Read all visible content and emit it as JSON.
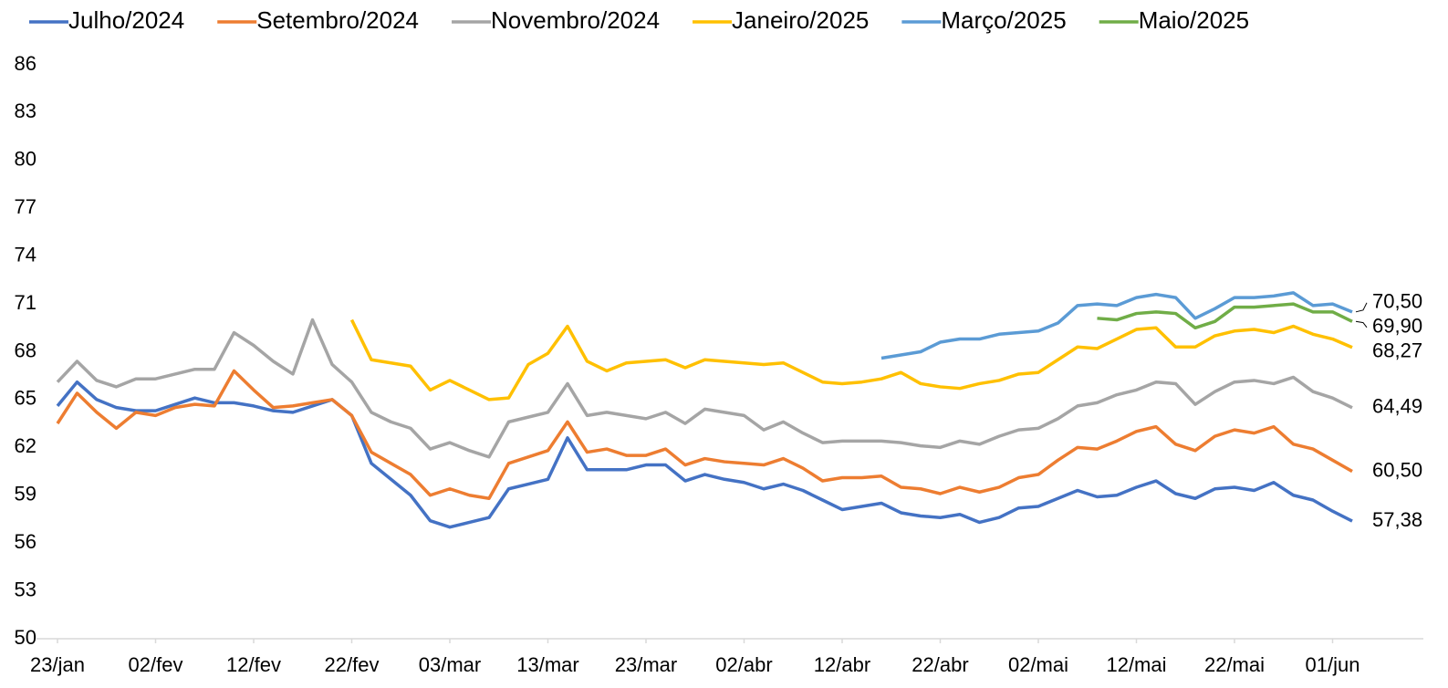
{
  "chart_data": {
    "type": "line",
    "x": [
      0,
      2,
      4,
      6,
      8,
      10,
      12,
      14,
      16,
      18,
      20,
      22,
      24,
      26,
      28,
      30,
      32,
      34,
      36,
      38,
      40,
      42,
      44,
      46,
      48,
      50,
      52,
      54,
      56,
      58,
      60,
      62,
      64,
      66,
      68,
      70,
      72,
      74,
      76,
      78,
      80,
      82,
      84,
      86,
      88,
      90,
      92,
      94,
      96,
      98,
      100,
      102,
      104,
      106,
      108,
      110,
      112,
      114,
      116,
      118,
      120,
      122,
      124,
      126,
      128,
      130,
      132
    ],
    "xlim": [
      0,
      132
    ],
    "xticks": [
      {
        "value": 0,
        "label": "23/jan"
      },
      {
        "value": 10,
        "label": "02/fev"
      },
      {
        "value": 20,
        "label": "12/fev"
      },
      {
        "value": 30,
        "label": "22/fev"
      },
      {
        "value": 40,
        "label": "03/mar"
      },
      {
        "value": 50,
        "label": "13/mar"
      },
      {
        "value": 60,
        "label": "23/mar"
      },
      {
        "value": 70,
        "label": "02/abr"
      },
      {
        "value": 80,
        "label": "12/abr"
      },
      {
        "value": 90,
        "label": "22/abr"
      },
      {
        "value": 100,
        "label": "02/mai"
      },
      {
        "value": 110,
        "label": "12/mai"
      },
      {
        "value": 120,
        "label": "22/mai"
      },
      {
        "value": 130,
        "label": "01/jun"
      }
    ],
    "ylim": [
      50,
      86
    ],
    "yticks": [
      50,
      53,
      56,
      59,
      62,
      65,
      68,
      71,
      74,
      77,
      80,
      83,
      86
    ],
    "legend": "top",
    "series": [
      {
        "name": "Julho/2024",
        "color": "#4472c4",
        "values": [
          64.6,
          66.1,
          65.0,
          64.5,
          64.3,
          64.3,
          64.7,
          65.1,
          64.8,
          64.8,
          64.6,
          64.3,
          64.2,
          64.6,
          65.0,
          64.0,
          61.0,
          60.0,
          59.0,
          57.4,
          57.0,
          57.3,
          57.6,
          59.4,
          59.7,
          60.0,
          62.6,
          60.6,
          60.6,
          60.6,
          60.9,
          60.9,
          59.9,
          60.3,
          60.0,
          59.8,
          59.4,
          59.7,
          59.3,
          58.7,
          58.1,
          58.3,
          58.5,
          57.9,
          57.7,
          57.6,
          57.8,
          57.3,
          57.6,
          58.2,
          58.3,
          58.8,
          59.3,
          58.9,
          59.0,
          59.5,
          59.9,
          59.1,
          58.8,
          59.4,
          59.5,
          59.3,
          59.8,
          59.0,
          58.7,
          58.0,
          57.38
        ],
        "value_labels": [
          null,
          null,
          null,
          null,
          null,
          null,
          null,
          null,
          null,
          null,
          null,
          null,
          null,
          null,
          null,
          null,
          null,
          null,
          null,
          null,
          null,
          null,
          null,
          null,
          null,
          null,
          null,
          null,
          null,
          null,
          null,
          null,
          null,
          null,
          null,
          null,
          null,
          null,
          null,
          null,
          null,
          null,
          null,
          null,
          null,
          null,
          null,
          null,
          null,
          null,
          null,
          null,
          null,
          null,
          null,
          null,
          null,
          null,
          null,
          null,
          null,
          null,
          null,
          null,
          null,
          null,
          "57,38"
        ]
      },
      {
        "name": "Setembro/2024",
        "color": "#ed7d31",
        "values": [
          63.5,
          65.4,
          64.2,
          63.2,
          64.2,
          64.0,
          64.5,
          64.7,
          64.6,
          66.8,
          65.6,
          64.5,
          64.6,
          64.8,
          65.0,
          64.0,
          61.7,
          61.0,
          60.3,
          59.0,
          59.4,
          59.0,
          58.8,
          61.0,
          61.4,
          61.8,
          63.6,
          61.7,
          61.9,
          61.5,
          61.5,
          61.9,
          60.9,
          61.3,
          61.1,
          61.0,
          60.9,
          61.3,
          60.7,
          59.9,
          60.1,
          60.1,
          60.2,
          59.5,
          59.4,
          59.1,
          59.5,
          59.2,
          59.5,
          60.1,
          60.3,
          61.2,
          62.0,
          61.9,
          62.4,
          63.0,
          63.3,
          62.2,
          61.8,
          62.7,
          63.1,
          62.9,
          63.3,
          62.2,
          61.9,
          61.2,
          60.5
        ],
        "value_labels": [
          null,
          null,
          null,
          null,
          null,
          null,
          null,
          null,
          null,
          null,
          null,
          null,
          null,
          null,
          null,
          null,
          null,
          null,
          null,
          null,
          null,
          null,
          null,
          null,
          null,
          null,
          null,
          null,
          null,
          null,
          null,
          null,
          null,
          null,
          null,
          null,
          null,
          null,
          null,
          null,
          null,
          null,
          null,
          null,
          null,
          null,
          null,
          null,
          null,
          null,
          null,
          null,
          null,
          null,
          null,
          null,
          null,
          null,
          null,
          null,
          null,
          null,
          null,
          null,
          null,
          null,
          "60,50"
        ]
      },
      {
        "name": "Novembro/2024",
        "color": "#a5a5a5",
        "values": [
          66.1,
          67.4,
          66.2,
          65.8,
          66.3,
          66.3,
          66.6,
          66.9,
          66.9,
          69.2,
          68.4,
          67.4,
          66.6,
          70.0,
          67.2,
          66.1,
          64.2,
          63.6,
          63.2,
          61.9,
          62.3,
          61.8,
          61.4,
          63.6,
          63.9,
          64.2,
          66.0,
          64.0,
          64.2,
          64.0,
          63.8,
          64.2,
          63.5,
          64.4,
          64.2,
          64.0,
          63.1,
          63.6,
          62.9,
          62.3,
          62.4,
          62.4,
          62.4,
          62.3,
          62.1,
          62.0,
          62.4,
          62.2,
          62.7,
          63.1,
          63.2,
          63.8,
          64.6,
          64.8,
          65.3,
          65.6,
          66.1,
          66.0,
          64.7,
          65.5,
          66.1,
          66.2,
          66.0,
          66.4,
          65.5,
          65.1,
          64.49
        ],
        "value_labels": [
          null,
          null,
          null,
          null,
          null,
          null,
          null,
          null,
          null,
          null,
          null,
          null,
          null,
          null,
          null,
          null,
          null,
          null,
          null,
          null,
          null,
          null,
          null,
          null,
          null,
          null,
          null,
          null,
          null,
          null,
          null,
          null,
          null,
          null,
          null,
          null,
          null,
          null,
          null,
          null,
          null,
          null,
          null,
          null,
          null,
          null,
          null,
          null,
          null,
          null,
          null,
          null,
          null,
          null,
          null,
          null,
          null,
          null,
          null,
          null,
          null,
          null,
          null,
          null,
          null,
          null,
          "64,49"
        ]
      },
      {
        "name": "Janeiro/2025",
        "color": "#ffc000",
        "values": [
          null,
          null,
          null,
          null,
          null,
          null,
          null,
          null,
          null,
          null,
          null,
          null,
          null,
          null,
          null,
          70.0,
          67.5,
          67.3,
          67.1,
          65.6,
          66.2,
          65.6,
          65.0,
          65.1,
          67.2,
          67.9,
          69.6,
          67.4,
          66.8,
          67.3,
          67.4,
          67.5,
          67.0,
          67.5,
          67.4,
          67.3,
          67.2,
          67.3,
          66.7,
          66.1,
          66.0,
          66.1,
          66.3,
          66.7,
          66.0,
          65.8,
          65.7,
          66.0,
          66.2,
          66.6,
          66.7,
          67.5,
          68.3,
          68.2,
          68.8,
          69.4,
          69.5,
          68.3,
          68.3,
          69.0,
          69.3,
          69.4,
          69.2,
          69.6,
          69.1,
          68.8,
          68.27
        ],
        "value_labels": [
          null,
          null,
          null,
          null,
          null,
          null,
          null,
          null,
          null,
          null,
          null,
          null,
          null,
          null,
          null,
          null,
          null,
          null,
          null,
          null,
          null,
          null,
          null,
          null,
          null,
          null,
          null,
          null,
          null,
          null,
          null,
          null,
          null,
          null,
          null,
          null,
          null,
          null,
          null,
          null,
          null,
          null,
          null,
          null,
          null,
          null,
          null,
          null,
          null,
          null,
          null,
          null,
          null,
          null,
          null,
          null,
          null,
          null,
          null,
          null,
          null,
          null,
          null,
          null,
          null,
          null,
          "68,27"
        ]
      },
      {
        "name": "Março/2025",
        "color": "#5b9bd5",
        "values": [
          null,
          null,
          null,
          null,
          null,
          null,
          null,
          null,
          null,
          null,
          null,
          null,
          null,
          null,
          null,
          null,
          null,
          null,
          null,
          null,
          null,
          null,
          null,
          null,
          null,
          null,
          null,
          null,
          null,
          null,
          null,
          null,
          null,
          null,
          null,
          null,
          null,
          null,
          null,
          null,
          null,
          null,
          67.6,
          67.8,
          68.0,
          68.6,
          68.8,
          68.8,
          69.1,
          69.2,
          69.3,
          69.8,
          70.9,
          71.0,
          70.9,
          71.4,
          71.6,
          71.4,
          70.1,
          70.7,
          71.4,
          71.4,
          71.5,
          71.7,
          70.9,
          71.0,
          70.5
        ],
        "value_labels": [
          null,
          null,
          null,
          null,
          null,
          null,
          null,
          null,
          null,
          null,
          null,
          null,
          null,
          null,
          null,
          null,
          null,
          null,
          null,
          null,
          null,
          null,
          null,
          null,
          null,
          null,
          null,
          null,
          null,
          null,
          null,
          null,
          null,
          null,
          null,
          null,
          null,
          null,
          null,
          null,
          null,
          null,
          null,
          null,
          null,
          null,
          null,
          null,
          null,
          null,
          null,
          null,
          null,
          null,
          null,
          null,
          null,
          null,
          null,
          null,
          null,
          null,
          null,
          null,
          null,
          null,
          "70,50"
        ]
      },
      {
        "name": "Maio/2025",
        "color": "#70ad47",
        "values": [
          null,
          null,
          null,
          null,
          null,
          null,
          null,
          null,
          null,
          null,
          null,
          null,
          null,
          null,
          null,
          null,
          null,
          null,
          null,
          null,
          null,
          null,
          null,
          null,
          null,
          null,
          null,
          null,
          null,
          null,
          null,
          null,
          null,
          null,
          null,
          null,
          null,
          null,
          null,
          null,
          null,
          null,
          null,
          null,
          null,
          null,
          null,
          null,
          null,
          null,
          null,
          null,
          null,
          70.1,
          70.0,
          70.4,
          70.5,
          70.4,
          69.5,
          69.9,
          70.8,
          70.8,
          70.9,
          71.0,
          70.5,
          70.5,
          69.9
        ],
        "value_labels": [
          null,
          null,
          null,
          null,
          null,
          null,
          null,
          null,
          null,
          null,
          null,
          null,
          null,
          null,
          null,
          null,
          null,
          null,
          null,
          null,
          null,
          null,
          null,
          null,
          null,
          null,
          null,
          null,
          null,
          null,
          null,
          null,
          null,
          null,
          null,
          null,
          null,
          null,
          null,
          null,
          null,
          null,
          null,
          null,
          null,
          null,
          null,
          null,
          null,
          null,
          null,
          null,
          null,
          null,
          null,
          null,
          null,
          null,
          null,
          null,
          null,
          null,
          null,
          null,
          null,
          null,
          "69,90"
        ]
      }
    ]
  }
}
